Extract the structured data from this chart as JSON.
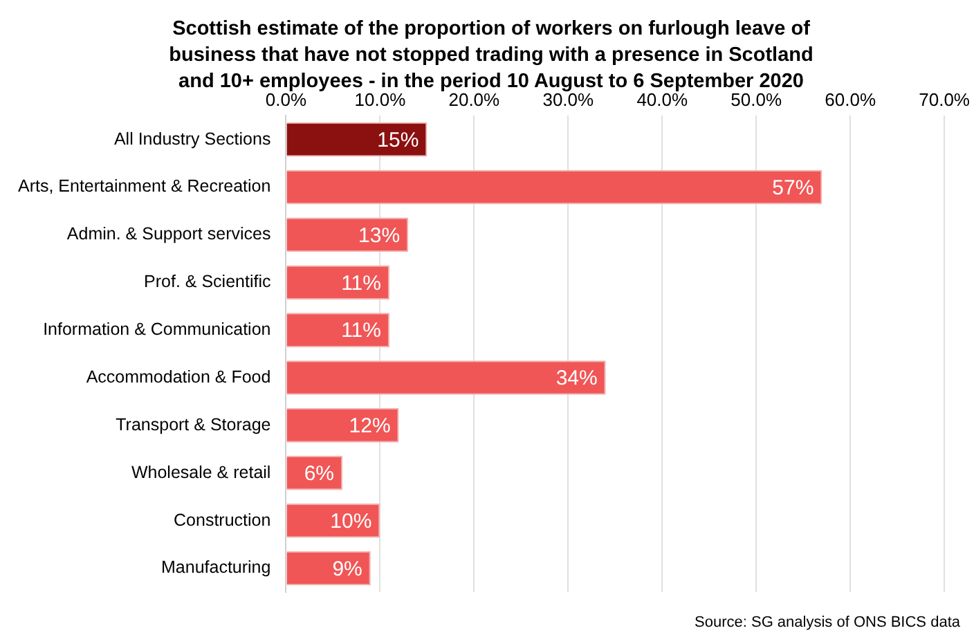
{
  "chart_data": {
    "type": "bar",
    "orientation": "horizontal",
    "title": "Scottish estimate of the proportion of workers on furlough leave of business that have not stopped trading with a presence in Scotland and 10+ employees - in the period 10 August to 6 September 2020",
    "categories": [
      "All Industry Sections",
      "Arts, Entertainment & Recreation",
      "Admin. & Support services",
      "Prof. & Scientific",
      "Information & Communication",
      "Accommodation & Food",
      "Transport & Storage",
      "Wholesale & retail",
      "Construction",
      "Manufacturing"
    ],
    "values": [
      15,
      57,
      13,
      11,
      11,
      34,
      12,
      6,
      10,
      9
    ],
    "colors": [
      "#8b1010",
      "#f05656",
      "#f05656",
      "#f05656",
      "#f05656",
      "#f05656",
      "#f05656",
      "#f05656",
      "#f05656",
      "#f05656"
    ],
    "value_labels": [
      "15%",
      "57%",
      "13%",
      "11%",
      "11%",
      "34%",
      "12%",
      "6%",
      "10%",
      "9%"
    ],
    "xlim": [
      0,
      70
    ],
    "xticks": [
      {
        "value": 0,
        "label": "0.0%"
      },
      {
        "value": 10,
        "label": "10.0%"
      },
      {
        "value": 20,
        "label": "20.0%"
      },
      {
        "value": 30,
        "label": "30.0%"
      },
      {
        "value": 40,
        "label": "40.0%"
      },
      {
        "value": 50,
        "label": "50.0%"
      },
      {
        "value": 60,
        "label": "60.0%"
      },
      {
        "value": 70,
        "label": "70.0%"
      }
    ],
    "grid": "x",
    "legend": false,
    "annotations": [
      "Source: SG analysis of ONS BICS data"
    ]
  }
}
